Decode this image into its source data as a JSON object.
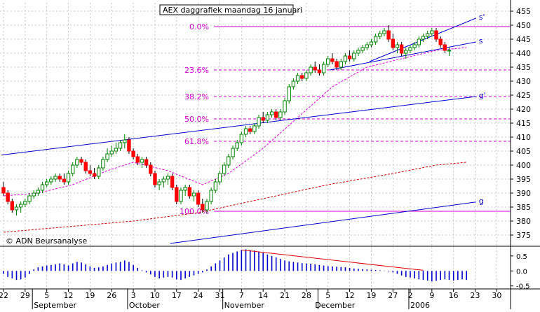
{
  "chart_data": {
    "type": "candlestick",
    "title": "AEX daggrafiek maandag 16 januari",
    "copyright": "© ADN Beursanalyse",
    "colors": {
      "up": "#ffffff",
      "up_outline": "#008000",
      "down": "#ff0000",
      "fib": "#cc00cc",
      "trend": "#0000cc",
      "ma_short": "#dd00dd",
      "ma_long": "#cc0000",
      "grid": "#b8b8b8",
      "macd_bar": "#0000cc",
      "macd_trend": "#dd0000"
    },
    "y_axis": {
      "min": 371,
      "max": 458,
      "ticks": [
        375,
        380,
        385,
        390,
        395,
        400,
        405,
        410,
        415,
        420,
        425,
        430,
        435,
        440,
        445,
        450,
        455
      ]
    },
    "x_axis": {
      "day_labels": [
        {
          "i": 0,
          "label": "22"
        },
        {
          "i": 5,
          "label": "29"
        },
        {
          "i": 10,
          "label": "5"
        },
        {
          "i": 15,
          "label": "12"
        },
        {
          "i": 20,
          "label": "19"
        },
        {
          "i": 25,
          "label": "26"
        },
        {
          "i": 30,
          "label": "3"
        },
        {
          "i": 35,
          "label": "10"
        },
        {
          "i": 40,
          "label": "17"
        },
        {
          "i": 45,
          "label": "24"
        },
        {
          "i": 50,
          "label": "31"
        },
        {
          "i": 55,
          "label": "7"
        },
        {
          "i": 60,
          "label": "14"
        },
        {
          "i": 65,
          "label": "21"
        },
        {
          "i": 70,
          "label": "28"
        },
        {
          "i": 75,
          "label": "5"
        },
        {
          "i": 80,
          "label": "12"
        },
        {
          "i": 85,
          "label": "19"
        },
        {
          "i": 90,
          "label": "27"
        },
        {
          "i": 94,
          "label": "2"
        },
        {
          "i": 99,
          "label": "9"
        },
        {
          "i": 104,
          "label": "16"
        },
        {
          "i": 109,
          "label": "23"
        },
        {
          "i": 114,
          "label": "30"
        }
      ],
      "month_labels": [
        {
          "i": 7,
          "label": "September"
        },
        {
          "i": 29,
          "label": "October"
        },
        {
          "i": 51,
          "label": "November"
        },
        {
          "i": 72,
          "label": "December"
        },
        {
          "i": 94,
          "label": "2006"
        }
      ],
      "month_separators": [
        7,
        29,
        51,
        73,
        94
      ]
    },
    "candles": [
      [
        392,
        394,
        389,
        390
      ],
      [
        390,
        391,
        386,
        387
      ],
      [
        387,
        388,
        383,
        384
      ],
      [
        384,
        386,
        382,
        385
      ],
      [
        385,
        387,
        383,
        386
      ],
      [
        386,
        388,
        385,
        387
      ],
      [
        387,
        390,
        386,
        389
      ],
      [
        389,
        391,
        388,
        390
      ],
      [
        390,
        392,
        389,
        391
      ],
      [
        391,
        394,
        390,
        393
      ],
      [
        393,
        395,
        392,
        394
      ],
      [
        394,
        396,
        393,
        395
      ],
      [
        395,
        397,
        394,
        396
      ],
      [
        396,
        397,
        394,
        395
      ],
      [
        395,
        397,
        393,
        394
      ],
      [
        394,
        398,
        393,
        397
      ],
      [
        397,
        401,
        396,
        400
      ],
      [
        400,
        403,
        399,
        402
      ],
      [
        402,
        403,
        400,
        401
      ],
      [
        401,
        402,
        397,
        398
      ],
      [
        398,
        400,
        396,
        397
      ],
      [
        397,
        399,
        395,
        396
      ],
      [
        396,
        400,
        395,
        399
      ],
      [
        399,
        403,
        398,
        402
      ],
      [
        402,
        406,
        401,
        404
      ],
      [
        404,
        407,
        403,
        405
      ],
      [
        405,
        408,
        404,
        406
      ],
      [
        406,
        409,
        405,
        408
      ],
      [
        408,
        411,
        406,
        409
      ],
      [
        409,
        410,
        404,
        405
      ],
      [
        405,
        406,
        402,
        403
      ],
      [
        403,
        404,
        400,
        401
      ],
      [
        401,
        403,
        399,
        402
      ],
      [
        402,
        403,
        399,
        400
      ],
      [
        400,
        401,
        396,
        397
      ],
      [
        397,
        398,
        392,
        393
      ],
      [
        393,
        395,
        391,
        394
      ],
      [
        394,
        396,
        392,
        395
      ],
      [
        395,
        397,
        393,
        396
      ],
      [
        396,
        397,
        391,
        392
      ],
      [
        392,
        393,
        386,
        387
      ],
      [
        387,
        392,
        386,
        391
      ],
      [
        391,
        393,
        389,
        392
      ],
      [
        392,
        393,
        388,
        389
      ],
      [
        389,
        391,
        387,
        390
      ],
      [
        390,
        391,
        385,
        386
      ],
      [
        386,
        388,
        383,
        384
      ],
      [
        384,
        388,
        383,
        387
      ],
      [
        387,
        392,
        386,
        391
      ],
      [
        391,
        395,
        390,
        394
      ],
      [
        394,
        398,
        393,
        397
      ],
      [
        397,
        401,
        396,
        400
      ],
      [
        400,
        404,
        399,
        403
      ],
      [
        403,
        407,
        402,
        406
      ],
      [
        406,
        409,
        405,
        408
      ],
      [
        408,
        412,
        407,
        411
      ],
      [
        411,
        414,
        410,
        413
      ],
      [
        413,
        414,
        411,
        412
      ],
      [
        412,
        415,
        411,
        414
      ],
      [
        414,
        418,
        413,
        417
      ],
      [
        417,
        419,
        415,
        416
      ],
      [
        416,
        419,
        415,
        418
      ],
      [
        418,
        420,
        417,
        419
      ],
      [
        419,
        420,
        416,
        417
      ],
      [
        417,
        420,
        416,
        419
      ],
      [
        419,
        424,
        418,
        423
      ],
      [
        423,
        429,
        422,
        428
      ],
      [
        428,
        431,
        427,
        430
      ],
      [
        430,
        433,
        429,
        432
      ],
      [
        432,
        433,
        430,
        431
      ],
      [
        431,
        434,
        430,
        433
      ],
      [
        433,
        436,
        432,
        435
      ],
      [
        435,
        437,
        433,
        434
      ],
      [
        434,
        436,
        432,
        433
      ],
      [
        433,
        437,
        432,
        436
      ],
      [
        436,
        439,
        435,
        438
      ],
      [
        438,
        440,
        436,
        437
      ],
      [
        437,
        438,
        434,
        435
      ],
      [
        435,
        438,
        434,
        437
      ],
      [
        437,
        440,
        436,
        439
      ],
      [
        439,
        441,
        437,
        438
      ],
      [
        438,
        441,
        437,
        440
      ],
      [
        440,
        442,
        439,
        441
      ],
      [
        441,
        443,
        440,
        442
      ],
      [
        442,
        444,
        441,
        443
      ],
      [
        443,
        445,
        442,
        444
      ],
      [
        444,
        447,
        443,
        446
      ],
      [
        446,
        448,
        445,
        447
      ],
      [
        447,
        449,
        446,
        448
      ],
      [
        448,
        450,
        444,
        445
      ],
      [
        445,
        447,
        441,
        442
      ],
      [
        442,
        444,
        440,
        443
      ],
      [
        443,
        444,
        439,
        440
      ],
      [
        440,
        442,
        438,
        441
      ],
      [
        441,
        443,
        440,
        442
      ],
      [
        442,
        444,
        441,
        443
      ],
      [
        443,
        446,
        442,
        445
      ],
      [
        445,
        447,
        444,
        446
      ],
      [
        446,
        448,
        445,
        447
      ],
      [
        447,
        449,
        446,
        448
      ],
      [
        448,
        449,
        444,
        445
      ],
      [
        445,
        446,
        442,
        443
      ],
      [
        443,
        444,
        440,
        441
      ],
      [
        441,
        442,
        439,
        441
      ]
    ],
    "ma_short": [
      [
        0,
        389
      ],
      [
        8,
        390
      ],
      [
        16,
        393
      ],
      [
        24,
        398
      ],
      [
        30,
        401
      ],
      [
        38,
        398
      ],
      [
        46,
        393
      ],
      [
        52,
        397
      ],
      [
        60,
        406
      ],
      [
        68,
        417
      ],
      [
        76,
        428
      ],
      [
        84,
        435
      ],
      [
        92,
        438
      ],
      [
        100,
        441
      ],
      [
        107,
        442
      ]
    ],
    "ma_long": [
      [
        0,
        376
      ],
      [
        15,
        378
      ],
      [
        30,
        380
      ],
      [
        45,
        383
      ],
      [
        60,
        388
      ],
      [
        75,
        393
      ],
      [
        90,
        397
      ],
      [
        100,
        400
      ],
      [
        107,
        401
      ]
    ],
    "fibonacci": [
      {
        "label": "0.0%",
        "value": 449.5
      },
      {
        "label": "23.6%",
        "value": 434.0
      },
      {
        "label": "38.2%",
        "value": 424.5
      },
      {
        "label": "50.0%",
        "value": 416.5
      },
      {
        "label": "61.8%",
        "value": 408.5
      },
      {
        "label": "100.0%",
        "value": 383.5
      }
    ],
    "trendlines": [
      {
        "label": "s'",
        "points": [
          [
            84.6,
            437
          ],
          [
            109.2,
            452.5
          ]
        ]
      },
      {
        "label": "s",
        "points": [
          [
            75.4,
            434
          ],
          [
            109.2,
            444
          ]
        ]
      },
      {
        "label": "g'",
        "points": [
          [
            -0.5,
            403.6
          ],
          [
            109.2,
            424.5
          ]
        ]
      },
      {
        "label": "g",
        "points": [
          [
            38.5,
            372
          ],
          [
            109.2,
            386.8
          ]
        ]
      }
    ],
    "macd": {
      "ylim": [
        -0.6,
        0.8
      ],
      "ticks": [
        0.5,
        0,
        -0.5
      ],
      "tick_labels": [
        "0.5",
        "0.0",
        "-0.5"
      ],
      "values": [
        -0.1,
        -0.2,
        -0.25,
        -0.3,
        -0.28,
        -0.22,
        -0.1,
        0.05,
        0.12,
        0.15,
        0.18,
        0.2,
        0.22,
        0.25,
        0.22,
        0.18,
        0.25,
        0.3,
        0.28,
        0.22,
        0.15,
        0.1,
        0.12,
        0.15,
        0.2,
        0.25,
        0.28,
        0.3,
        0.35,
        0.3,
        0.2,
        0.1,
        0.02,
        -0.05,
        -0.12,
        -0.2,
        -0.25,
        -0.22,
        -0.2,
        -0.22,
        -0.28,
        -0.3,
        -0.25,
        -0.2,
        -0.15,
        -0.1,
        -0.05,
        0.05,
        0.15,
        0.25,
        0.35,
        0.45,
        0.55,
        0.6,
        0.65,
        0.7,
        0.72,
        0.7,
        0.68,
        0.65,
        0.6,
        0.55,
        0.5,
        0.45,
        0.4,
        0.35,
        0.32,
        0.3,
        0.28,
        0.26,
        0.25,
        0.24,
        0.22,
        0.2,
        0.18,
        0.16,
        0.15,
        0.14,
        0.13,
        0.12,
        0.1,
        0.08,
        0.07,
        0.06,
        0.05,
        0.04,
        0.03,
        0.02,
        0.01,
        -0.02,
        -0.05,
        -0.1,
        -0.15,
        -0.2,
        -0.22,
        -0.25,
        -0.28,
        -0.3,
        -0.32,
        -0.35,
        -0.33,
        -0.3,
        -0.28,
        -0.3,
        -0.32,
        -0.3,
        -0.28,
        -0.3
      ],
      "trend": [
        [
          55,
          0.7
        ],
        [
          97,
          0.02
        ]
      ]
    }
  }
}
